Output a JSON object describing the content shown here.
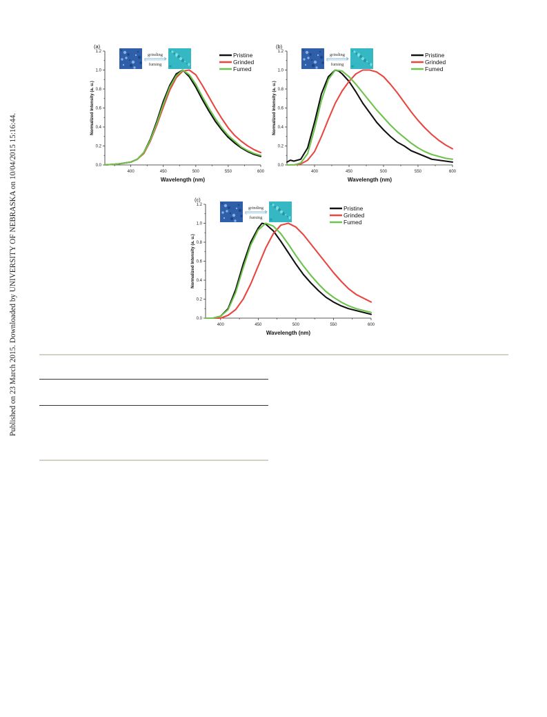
{
  "sidebar": {
    "text": "Published on 23 March 2015. Downloaded by UNIVERSITY OF NEBRASKA on 10/04/2015 15:16:44."
  },
  "colors": {
    "pristine": "#111111",
    "grinded": "#e8463f",
    "fumed": "#6cc24a",
    "inset_left": "#2f5fa8",
    "inset_right": "#35b8c4"
  },
  "chart_data": [
    {
      "type": "line",
      "panel": "(a)",
      "xlabel": "Wavelength (nm)",
      "ylabel": "Normalized Intensity (a. u.)",
      "xlim": [
        360,
        600
      ],
      "ylim": [
        0,
        1.2
      ],
      "xticks": [
        400,
        450,
        500,
        550,
        600
      ],
      "yticks": [
        0.0,
        0.2,
        0.4,
        0.6,
        0.8,
        1.0,
        1.2
      ],
      "ytick_labels": [
        "0.0",
        "0.2",
        "0.4",
        "0.6",
        "0.8",
        "1.0",
        "1.2"
      ],
      "inset": {
        "top_label": "grinding",
        "bottom_label": "fuming"
      },
      "legend_position": "top-right",
      "series": [
        {
          "name": "Pristine",
          "color_key": "pristine",
          "x": [
            360,
            380,
            400,
            410,
            420,
            430,
            440,
            450,
            460,
            470,
            480,
            490,
            500,
            510,
            520,
            530,
            540,
            550,
            560,
            570,
            580,
            590,
            600
          ],
          "y": [
            0.0,
            0.01,
            0.03,
            0.06,
            0.13,
            0.27,
            0.46,
            0.67,
            0.84,
            0.96,
            1.0,
            0.93,
            0.82,
            0.69,
            0.57,
            0.46,
            0.37,
            0.29,
            0.23,
            0.18,
            0.14,
            0.11,
            0.09
          ]
        },
        {
          "name": "Grinded",
          "color_key": "grinded",
          "x": [
            360,
            380,
            400,
            410,
            420,
            430,
            440,
            450,
            460,
            470,
            480,
            490,
            500,
            510,
            520,
            530,
            540,
            550,
            560,
            570,
            580,
            590,
            600
          ],
          "y": [
            0.0,
            0.01,
            0.03,
            0.06,
            0.12,
            0.25,
            0.42,
            0.61,
            0.79,
            0.92,
            0.99,
            1.0,
            0.95,
            0.84,
            0.72,
            0.6,
            0.49,
            0.39,
            0.31,
            0.25,
            0.2,
            0.16,
            0.13
          ]
        },
        {
          "name": "Fumed",
          "color_key": "fumed",
          "x": [
            360,
            380,
            400,
            410,
            420,
            430,
            440,
            450,
            460,
            470,
            480,
            490,
            500,
            510,
            520,
            530,
            540,
            550,
            560,
            570,
            580,
            590,
            600
          ],
          "y": [
            0.0,
            0.01,
            0.03,
            0.06,
            0.13,
            0.26,
            0.44,
            0.64,
            0.82,
            0.94,
            1.0,
            0.95,
            0.85,
            0.72,
            0.6,
            0.49,
            0.39,
            0.31,
            0.25,
            0.19,
            0.15,
            0.12,
            0.1
          ]
        }
      ]
    },
    {
      "type": "line",
      "panel": "(b)",
      "xlabel": "Wavelength (nm)",
      "ylabel": "Normalized Intensity (a. u.)",
      "xlim": [
        360,
        600
      ],
      "ylim": [
        0,
        1.2
      ],
      "xticks": [
        400,
        450,
        500,
        550,
        600
      ],
      "yticks": [
        0.0,
        0.2,
        0.4,
        0.6,
        0.8,
        1.0,
        1.2
      ],
      "ytick_labels": [
        "0.0",
        "0.2",
        "0.4",
        "0.6",
        "0.8",
        "1.0",
        "1.2"
      ],
      "inset": {
        "top_label": "grinding",
        "bottom_label": "fuming"
      },
      "legend_position": "top-right",
      "series": [
        {
          "name": "Pristine",
          "color_key": "pristine",
          "x": [
            360,
            365,
            370,
            380,
            390,
            400,
            410,
            420,
            430,
            435,
            440,
            450,
            460,
            470,
            480,
            490,
            500,
            510,
            520,
            530,
            540,
            550,
            560,
            570,
            580,
            590,
            600
          ],
          "y": [
            0.03,
            0.05,
            0.04,
            0.06,
            0.18,
            0.45,
            0.75,
            0.93,
            1.0,
            0.99,
            0.96,
            0.88,
            0.77,
            0.65,
            0.55,
            0.45,
            0.37,
            0.3,
            0.24,
            0.2,
            0.15,
            0.12,
            0.09,
            0.06,
            0.05,
            0.04,
            0.03
          ]
        },
        {
          "name": "Grinded",
          "color_key": "grinded",
          "x": [
            360,
            370,
            380,
            390,
            400,
            410,
            420,
            430,
            440,
            450,
            460,
            470,
            480,
            490,
            500,
            510,
            520,
            530,
            540,
            550,
            560,
            570,
            580,
            590,
            600
          ],
          "y": [
            0.0,
            0.0,
            0.01,
            0.05,
            0.14,
            0.3,
            0.48,
            0.65,
            0.78,
            0.88,
            0.96,
            1.0,
            1.0,
            0.98,
            0.93,
            0.85,
            0.76,
            0.66,
            0.56,
            0.47,
            0.39,
            0.32,
            0.26,
            0.21,
            0.17
          ]
        },
        {
          "name": "Fumed",
          "color_key": "fumed",
          "x": [
            360,
            370,
            380,
            390,
            400,
            410,
            420,
            430,
            440,
            450,
            460,
            470,
            480,
            490,
            500,
            510,
            520,
            530,
            540,
            550,
            560,
            570,
            580,
            590,
            600
          ],
          "y": [
            0.0,
            0.0,
            0.02,
            0.12,
            0.38,
            0.68,
            0.9,
            1.0,
            0.99,
            0.93,
            0.85,
            0.76,
            0.67,
            0.58,
            0.5,
            0.42,
            0.35,
            0.29,
            0.23,
            0.18,
            0.14,
            0.11,
            0.09,
            0.07,
            0.06
          ]
        }
      ]
    },
    {
      "type": "line",
      "panel": "(c)",
      "xlabel": "Wavelength (nm)",
      "ylabel": "Normalized Intensity (a. u.)",
      "xlim": [
        380,
        600
      ],
      "ylim": [
        0,
        1.2
      ],
      "xticks": [
        400,
        450,
        500,
        550,
        600
      ],
      "yticks": [
        0.0,
        0.2,
        0.4,
        0.6,
        0.8,
        1.0,
        1.2
      ],
      "ytick_labels": [
        "0.0",
        "0.2",
        "0.4",
        "0.6",
        "0.8",
        "1.0",
        "1.2"
      ],
      "inset": {
        "top_label": "grinding",
        "bottom_label": "fuming"
      },
      "legend_position": "top-right",
      "series": [
        {
          "name": "Pristine",
          "color_key": "pristine",
          "x": [
            380,
            390,
            400,
            410,
            420,
            430,
            440,
            450,
            455,
            460,
            470,
            480,
            490,
            500,
            510,
            520,
            530,
            540,
            550,
            560,
            570,
            580,
            590,
            600
          ],
          "y": [
            0.0,
            0.0,
            0.02,
            0.1,
            0.3,
            0.57,
            0.8,
            0.95,
            1.0,
            0.99,
            0.92,
            0.81,
            0.69,
            0.57,
            0.46,
            0.37,
            0.29,
            0.22,
            0.17,
            0.13,
            0.1,
            0.08,
            0.06,
            0.04
          ]
        },
        {
          "name": "Grinded",
          "color_key": "grinded",
          "x": [
            380,
            390,
            400,
            410,
            420,
            430,
            440,
            450,
            460,
            470,
            480,
            490,
            500,
            510,
            520,
            530,
            540,
            550,
            560,
            570,
            580,
            590,
            600
          ],
          "y": [
            0.0,
            0.0,
            0.0,
            0.03,
            0.09,
            0.2,
            0.36,
            0.55,
            0.74,
            0.89,
            0.98,
            1.0,
            0.96,
            0.88,
            0.78,
            0.68,
            0.58,
            0.48,
            0.39,
            0.31,
            0.25,
            0.21,
            0.17
          ]
        },
        {
          "name": "Fumed",
          "color_key": "fumed",
          "x": [
            380,
            390,
            400,
            410,
            420,
            430,
            440,
            450,
            460,
            470,
            480,
            490,
            500,
            510,
            520,
            530,
            540,
            550,
            560,
            570,
            580,
            590,
            600
          ],
          "y": [
            0.0,
            0.0,
            0.02,
            0.09,
            0.27,
            0.53,
            0.77,
            0.93,
            1.0,
            0.97,
            0.89,
            0.78,
            0.66,
            0.55,
            0.45,
            0.36,
            0.28,
            0.22,
            0.17,
            0.13,
            0.1,
            0.08,
            0.06
          ]
        }
      ]
    }
  ]
}
